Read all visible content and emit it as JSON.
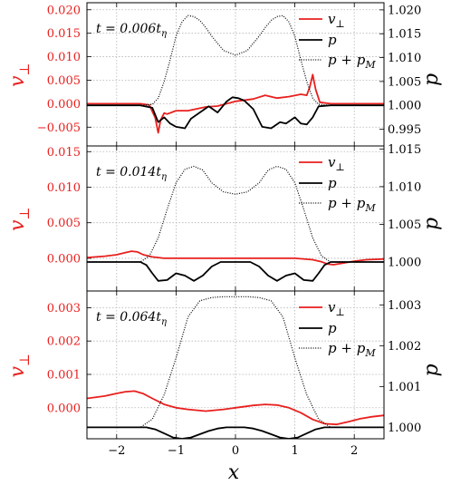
{
  "colors": {
    "red": "#e8201e",
    "black": "#000000",
    "grid": "#b3b3b3"
  },
  "chart_data": [
    {
      "type": "line",
      "panel": "top",
      "annotation": "t = 0.006tη",
      "left_ylabel": "v⊥",
      "right_ylabel": "p",
      "xlim": [
        -2.5,
        2.5
      ],
      "left_ylim": [
        -0.009,
        0.0215
      ],
      "right_ylim": [
        0.9915,
        1.0215
      ],
      "left_ticks": [
        "0.020",
        "0.015",
        "0.010",
        "0.005",
        "0.000",
        "−0.005"
      ],
      "left_tick_values": [
        0.02,
        0.015,
        0.01,
        0.005,
        0.0,
        -0.005
      ],
      "right_ticks": [
        "1.020",
        "1.015",
        "1.010",
        "1.005",
        "1.000",
        "0.995"
      ],
      "right_tick_values": [
        1.02,
        1.015,
        1.01,
        1.005,
        1.0,
        0.995
      ],
      "legend": [
        "v⊥",
        "p",
        "p + pM"
      ],
      "series": [
        {
          "name": "v⊥",
          "axis": "left",
          "color": "#e8201e",
          "style": "solid",
          "x": [
            -2.5,
            -1.6,
            -1.45,
            -1.35,
            -1.3,
            -1.26,
            -1.2,
            -1.15,
            -1.0,
            -0.8,
            -0.5,
            -0.3,
            0.0,
            0.3,
            0.5,
            0.7,
            0.9,
            1.1,
            1.2,
            1.25,
            1.3,
            1.35,
            1.42,
            1.6,
            2.5
          ],
          "y": [
            0,
            0,
            -0.0003,
            -0.003,
            -0.0062,
            -0.0035,
            -0.002,
            -0.0022,
            -0.0015,
            -0.0015,
            -0.0007,
            -0.0005,
            0.0005,
            0.001,
            0.0018,
            0.0012,
            0.0015,
            0.002,
            0.0018,
            0.0035,
            0.0062,
            0.003,
            0.0003,
            0,
            0
          ]
        },
        {
          "name": "p",
          "axis": "right",
          "color": "#000000",
          "style": "solid",
          "x": [
            -2.5,
            -1.6,
            -1.4,
            -1.3,
            -1.2,
            -1.1,
            -1.0,
            -0.85,
            -0.75,
            -0.6,
            -0.45,
            -0.3,
            -0.15,
            -0.05,
            0.05,
            0.15,
            0.3,
            0.45,
            0.6,
            0.75,
            0.85,
            1.0,
            1.1,
            1.2,
            1.3,
            1.4,
            1.6,
            2.5
          ],
          "y": [
            1.0,
            1.0,
            0.9995,
            0.9965,
            0.9975,
            0.9962,
            0.9955,
            0.9952,
            0.9972,
            0.9985,
            0.9998,
            0.9985,
            1.0008,
            1.0017,
            1.0015,
            1.001,
            0.9992,
            0.9955,
            0.9952,
            0.9965,
            0.9962,
            0.9975,
            0.9962,
            0.996,
            0.9975,
            0.9998,
            1.0,
            1.0
          ]
        },
        {
          "name": "p + pM",
          "axis": "right",
          "color": "#000000",
          "style": "dotted",
          "x": [
            -2.5,
            -1.6,
            -1.4,
            -1.3,
            -1.2,
            -1.1,
            -1.0,
            -0.9,
            -0.8,
            -0.7,
            -0.6,
            -0.5,
            -0.4,
            -0.2,
            0.0,
            0.2,
            0.4,
            0.5,
            0.6,
            0.7,
            0.8,
            0.9,
            1.0,
            1.1,
            1.2,
            1.3,
            1.4,
            1.6,
            2.5
          ],
          "y": [
            1.0,
            1.0,
            1.0002,
            1.0015,
            1.005,
            1.0095,
            1.0145,
            1.0175,
            1.0188,
            1.0186,
            1.0178,
            1.0163,
            1.0145,
            1.0115,
            1.0105,
            1.0115,
            1.0145,
            1.0163,
            1.0178,
            1.0186,
            1.0188,
            1.0175,
            1.0145,
            1.0095,
            1.005,
            1.0015,
            1.0002,
            1.0,
            1.0
          ]
        }
      ]
    },
    {
      "type": "line",
      "panel": "middle",
      "annotation": "t = 0.014tη",
      "left_ylabel": "v⊥",
      "right_ylabel": "p",
      "xlim": [
        -2.5,
        2.5
      ],
      "left_ylim": [
        -0.0046,
        0.0158
      ],
      "right_ylim": [
        0.99615,
        1.0154
      ],
      "left_ticks": [
        "0.015",
        "0.010",
        "0.005",
        "0.000"
      ],
      "left_tick_values": [
        0.015,
        0.01,
        0.005,
        0.0
      ],
      "right_ticks": [
        "1.015",
        "1.010",
        "1.005",
        "1.000"
      ],
      "right_tick_values": [
        1.015,
        1.01,
        1.005,
        1.0
      ],
      "legend": [
        "v⊥",
        "p",
        "p + pM"
      ],
      "series": [
        {
          "name": "v⊥",
          "axis": "left",
          "color": "#e8201e",
          "style": "solid",
          "x": [
            -2.5,
            -2.2,
            -2.0,
            -1.85,
            -1.75,
            -1.65,
            -1.55,
            -1.4,
            -1.2,
            -0.5,
            0.0,
            0.5,
            1.0,
            1.3,
            1.45,
            1.55,
            1.65,
            1.8,
            2.0,
            2.2,
            2.5
          ],
          "y": [
            0.0001,
            0.0003,
            0.0005,
            0.0008,
            0.001,
            0.0009,
            0.0005,
            0.0002,
            0.0,
            0.0,
            0.0,
            0.0,
            0.0,
            -0.0002,
            -0.0005,
            -0.0008,
            -0.0009,
            -0.0007,
            -0.0004,
            -0.0002,
            -0.0001
          ]
        },
        {
          "name": "p",
          "axis": "right",
          "color": "#000000",
          "style": "solid",
          "x": [
            -2.5,
            -1.6,
            -1.5,
            -1.4,
            -1.3,
            -1.15,
            -1.0,
            -0.85,
            -0.7,
            -0.55,
            -0.4,
            -0.25,
            -0.1,
            0.1,
            0.25,
            0.4,
            0.55,
            0.7,
            0.85,
            1.0,
            1.15,
            1.3,
            1.4,
            1.5,
            1.6,
            2.5
          ],
          "y": [
            1.0,
            1.0,
            0.9996,
            0.9985,
            0.9975,
            0.9976,
            0.9985,
            0.9982,
            0.9975,
            0.9982,
            0.9994,
            1.0,
            1.0,
            1.0,
            1.0,
            0.9994,
            0.9982,
            0.9975,
            0.9982,
            0.9985,
            0.9976,
            0.9975,
            0.9985,
            0.9996,
            1.0,
            1.0
          ]
        },
        {
          "name": "p + pM",
          "axis": "right",
          "color": "#000000",
          "style": "dotted",
          "x": [
            -2.5,
            -1.6,
            -1.45,
            -1.3,
            -1.15,
            -1.0,
            -0.85,
            -0.7,
            -0.55,
            -0.4,
            -0.2,
            0.0,
            0.2,
            0.4,
            0.55,
            0.7,
            0.85,
            1.0,
            1.15,
            1.3,
            1.45,
            1.6,
            2.5
          ],
          "y": [
            1.0,
            1.0,
            1.0008,
            1.0032,
            1.007,
            1.0105,
            1.0123,
            1.0127,
            1.0122,
            1.0105,
            1.0093,
            1.009,
            1.0093,
            1.0105,
            1.0122,
            1.0127,
            1.0123,
            1.0105,
            1.007,
            1.0032,
            1.0008,
            1.0,
            1.0
          ]
        }
      ]
    },
    {
      "type": "line",
      "panel": "bottom",
      "annotation": "t = 0.064tη",
      "left_ylabel": "v⊥",
      "right_ylabel": "p",
      "xlabel": "x",
      "xlim": [
        -2.5,
        2.5
      ],
      "left_ylim": [
        -0.00093,
        0.0035
      ],
      "right_ylim": [
        0.99972,
        1.00334
      ],
      "x_ticks": [
        "−2",
        "−1",
        "0",
        "1",
        "2"
      ],
      "x_tick_values": [
        -2,
        -1,
        0,
        1,
        2
      ],
      "left_ticks": [
        "0.003",
        "0.002",
        "0.001",
        "0.000"
      ],
      "left_tick_values": [
        0.003,
        0.002,
        0.001,
        0.0
      ],
      "right_ticks": [
        "1.003",
        "1.002",
        "1.001",
        "1.000"
      ],
      "right_tick_values": [
        1.003,
        1.002,
        1.001,
        1.0
      ],
      "legend": [
        "v⊥",
        "p",
        "p + pM"
      ],
      "series": [
        {
          "name": "v⊥",
          "axis": "left",
          "color": "#e8201e",
          "style": "solid",
          "x": [
            -2.5,
            -2.2,
            -2.0,
            -1.85,
            -1.7,
            -1.55,
            -1.4,
            -1.2,
            -1.0,
            -0.8,
            -0.5,
            -0.2,
            0.0,
            0.3,
            0.5,
            0.7,
            0.9,
            1.1,
            1.3,
            1.5,
            1.7,
            1.9,
            2.1,
            2.3,
            2.5
          ],
          "y": [
            0.00028,
            0.00035,
            0.00043,
            0.00048,
            0.0005,
            0.00042,
            0.00028,
            0.0001,
            0.0,
            -5e-05,
            -0.0001,
            -5e-05,
            0.0,
            7e-05,
            0.0001,
            8e-05,
            0.0,
            -0.00015,
            -0.00035,
            -0.00048,
            -0.0005,
            -0.00042,
            -0.00033,
            -0.00027,
            -0.00023
          ]
        },
        {
          "name": "p",
          "axis": "right",
          "color": "#000000",
          "style": "solid",
          "x": [
            -2.5,
            -1.5,
            -1.35,
            -1.2,
            -1.05,
            -0.9,
            -0.75,
            -0.6,
            -0.45,
            -0.3,
            -0.15,
            0.0,
            0.15,
            0.3,
            0.45,
            0.6,
            0.75,
            0.9,
            1.05,
            1.2,
            1.35,
            1.5,
            2.5
          ],
          "y": [
            1.0,
            1.0,
            0.99995,
            0.99985,
            0.99975,
            0.99972,
            0.99975,
            0.99983,
            0.99991,
            0.99997,
            1.0,
            1.0,
            1.0,
            0.99997,
            0.99991,
            0.99983,
            0.99975,
            0.99972,
            0.99975,
            0.99985,
            0.99995,
            1.0,
            1.0
          ]
        },
        {
          "name": "p + pM",
          "axis": "right",
          "color": "#000000",
          "style": "dotted",
          "x": [
            -2.5,
            -1.6,
            -1.4,
            -1.2,
            -1.0,
            -0.8,
            -0.6,
            -0.4,
            -0.2,
            0.0,
            0.2,
            0.4,
            0.6,
            0.8,
            1.0,
            1.2,
            1.4,
            1.6,
            2.5
          ],
          "y": [
            1.0,
            1.0,
            1.0002,
            1.0008,
            1.0017,
            1.0027,
            1.0031,
            1.00318,
            1.0032,
            1.0032,
            1.0032,
            1.00318,
            1.0031,
            1.0027,
            1.0017,
            1.0008,
            1.0002,
            1.0,
            1.0
          ]
        }
      ]
    }
  ]
}
